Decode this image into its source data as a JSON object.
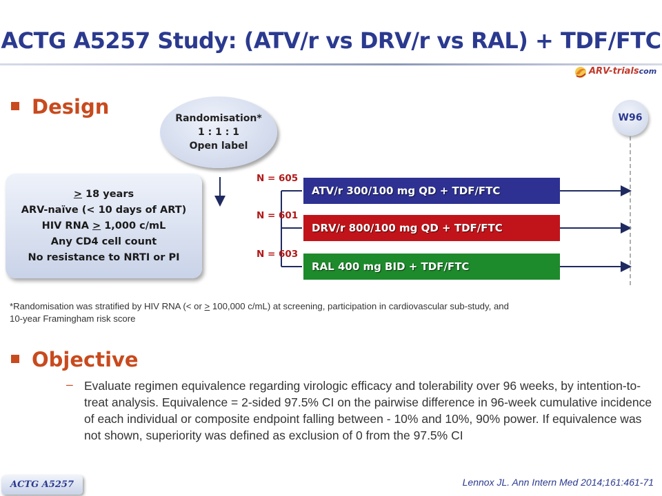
{
  "slide": {
    "title": "ACTG A5257 Study: (ATV/r vs DRV/r vs RAL) + TDF/FTC",
    "logo": {
      "main": "ARV-trials",
      "suffix": "com"
    }
  },
  "design": {
    "heading": "Design",
    "randomisation": {
      "line1": "Randomisation*",
      "line2": "1 : 1 : 1",
      "line3": "Open label"
    },
    "eligibility": {
      "line1_sym": ">",
      "line1_rest": " 18 years",
      "line2": "ARV-naïve (< 10 days of ART)",
      "line3_pre": "HIV RNA ",
      "line3_sym": ">",
      "line3_post": " 1,000 c/mL",
      "line4": "Any CD4 cell count",
      "line5": "No resistance to NRTI or PI"
    },
    "timepoint": "W96",
    "arms": [
      {
        "n_label": "N = 605",
        "label": "ATV/r 300/100 mg QD + TDF/FTC",
        "color": "#2e3192"
      },
      {
        "n_label": "N = 601",
        "label": "DRV/r 800/100 mg QD + TDF/FTC",
        "color": "#c1141a"
      },
      {
        "n_label": "N = 603",
        "label": "RAL 400 mg BID + TDF/FTC",
        "color": "#1d8a2b"
      }
    ],
    "footnote": {
      "part1": "*Randomisation was stratified by HIV RNA (< or ",
      "sym": ">",
      "part2": " 100,000 c/mL) at screening, participation in cardiovascular sub-study, and",
      "line2": "10-year Framingham risk score"
    }
  },
  "objective": {
    "heading": "Objective",
    "dash": "–",
    "text": "Evaluate regimen equivalence regarding virologic efficacy and tolerability over 96 weeks, by intention-to-treat analysis. Equivalence = 2-sided 97.5% CI on the pairwise difference in 96-week cumulative incidence of each individual or composite endpoint falling between - 10% and 10%, 90% power. If equivalence was not shown, superiority was defined as exclusion of 0 from the 97.5% CI"
  },
  "reference": "Lennox JL. Ann Intern Med 2014;161:461-71",
  "study_tag": "ACTG A5257"
}
